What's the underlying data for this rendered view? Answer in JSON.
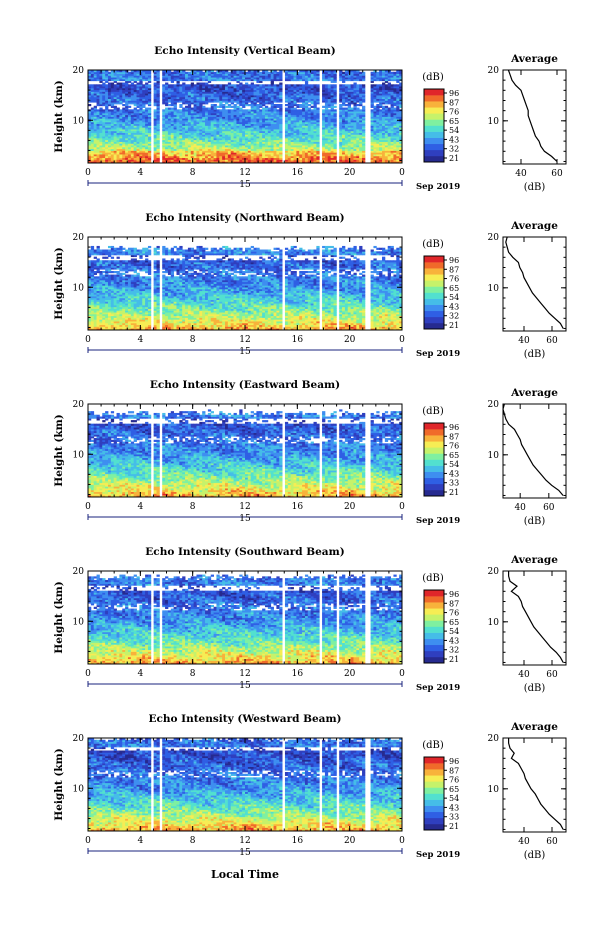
{
  "common": {
    "height_label": "Height (km)",
    "time_ticks": [
      "0",
      "4",
      "8",
      "12",
      "16",
      "20",
      "0"
    ],
    "date_day": "15",
    "date_label": "Sep 2019",
    "cb_unit": "(dB)",
    "avg_title": "Average",
    "avg_xlabel": "(dB)",
    "xlabel_bottom": "Local Time",
    "colors": {
      "scale": [
        "#262a8f",
        "#2f3fbf",
        "#2f5fe4",
        "#3e8ef0",
        "#45bde8",
        "#52e0cf",
        "#7ff0a0",
        "#c6f26a",
        "#f6ed54",
        "#f8b23b",
        "#f06a2a",
        "#e0262a"
      ],
      "axis": "#000000"
    }
  },
  "chart_data": [
    {
      "type": "heatmap",
      "title": "Echo Intensity (Vertical Beam)",
      "ylabel": "Height (km)",
      "ylim": [
        1.5,
        20
      ],
      "yticks": [
        "20",
        "10"
      ],
      "xlim": [
        0,
        24
      ],
      "xticks": [
        "0",
        "4",
        "8",
        "12",
        "16",
        "20",
        "0"
      ],
      "colorbar_ticks": [
        "96",
        "87",
        "76",
        "65",
        "54",
        "43",
        "32",
        "21"
      ],
      "data_gaps_hours": [
        [
          4.8,
          5.0
        ],
        [
          5.4,
          5.6
        ],
        [
          14.8,
          15.1
        ],
        [
          17.7,
          17.9
        ],
        [
          18.9,
          19.1
        ],
        [
          21.2,
          21.5
        ]
      ],
      "profile": {
        "title": "Average",
        "xlabel": "(dB)",
        "xticks": [
          "40",
          "60"
        ],
        "xlim": [
          30,
          65
        ],
        "yticks": [
          "20",
          "10"
        ],
        "height": [
          2,
          3,
          4,
          5,
          6,
          7,
          8,
          9,
          10,
          11,
          12,
          13,
          14,
          15,
          16,
          17,
          18,
          19,
          20
        ],
        "value": [
          60,
          57,
          53,
          51,
          50,
          48,
          47,
          46,
          45,
          44,
          44,
          43,
          42,
          41,
          40,
          37,
          35,
          34,
          33
        ]
      }
    },
    {
      "type": "heatmap",
      "title": "Echo Intensity (Northward Beam)",
      "ylabel": "Height (km)",
      "ylim": [
        1.5,
        20
      ],
      "yticks": [
        "20",
        "10"
      ],
      "xlim": [
        0,
        24
      ],
      "xticks": [
        "0",
        "4",
        "8",
        "12",
        "16",
        "20",
        "0"
      ],
      "colorbar_ticks": [
        "96",
        "87",
        "76",
        "65",
        "54",
        "43",
        "32",
        "21"
      ],
      "data_gaps_hours": [
        [
          4.8,
          5.0
        ],
        [
          5.4,
          5.6
        ],
        [
          14.8,
          15.1
        ],
        [
          17.7,
          17.9
        ],
        [
          18.9,
          19.1
        ],
        [
          21.2,
          21.5
        ]
      ],
      "profile": {
        "title": "Average",
        "xlabel": "(dB)",
        "xticks": [
          "40",
          "60"
        ],
        "xlim": [
          25,
          70
        ],
        "yticks": [
          "20",
          "10"
        ],
        "height": [
          2,
          3,
          4,
          5,
          6,
          7,
          8,
          9,
          10,
          11,
          12,
          13,
          14,
          15,
          16,
          17,
          18,
          19,
          20
        ],
        "value": [
          68,
          66,
          62,
          58,
          55,
          52,
          49,
          46,
          44,
          42,
          40,
          39,
          37,
          36,
          32,
          29,
          28,
          27,
          28
        ]
      }
    },
    {
      "type": "heatmap",
      "title": "Echo Intensity (Eastward Beam)",
      "ylabel": "Height (km)",
      "ylim": [
        1.5,
        20
      ],
      "yticks": [
        "20",
        "10"
      ],
      "xlim": [
        0,
        24
      ],
      "xticks": [
        "0",
        "4",
        "8",
        "12",
        "16",
        "20",
        "0"
      ],
      "colorbar_ticks": [
        "96",
        "87",
        "76",
        "65",
        "54",
        "43",
        "33",
        "21"
      ],
      "data_gaps_hours": [
        [
          4.8,
          5.0
        ],
        [
          5.4,
          5.6
        ],
        [
          14.8,
          15.1
        ],
        [
          17.7,
          17.9
        ],
        [
          18.9,
          19.1
        ],
        [
          21.2,
          21.5
        ]
      ],
      "profile": {
        "title": "Average",
        "xlabel": "(dB)",
        "xticks": [
          "40",
          "60"
        ],
        "xlim": [
          28,
          72
        ],
        "yticks": [
          "20",
          "10"
        ],
        "height": [
          2,
          3,
          4,
          5,
          6,
          7,
          8,
          9,
          10,
          11,
          12,
          13,
          14,
          15,
          16,
          17,
          18,
          19,
          20
        ],
        "value": [
          70,
          67,
          62,
          58,
          55,
          52,
          49,
          47,
          45,
          43,
          41,
          40,
          38,
          36,
          32,
          30,
          29,
          28,
          29
        ]
      }
    },
    {
      "type": "heatmap",
      "title": "Echo Intensity (Southward Beam)",
      "ylabel": "Height (km)",
      "ylim": [
        1.5,
        20
      ],
      "yticks": [
        "20",
        "10"
      ],
      "xlim": [
        0,
        24
      ],
      "xticks": [
        "0",
        "4",
        "8",
        "12",
        "16",
        "20",
        "0"
      ],
      "colorbar_ticks": [
        "96",
        "87",
        "76",
        "65",
        "54",
        "43",
        "32",
        "21"
      ],
      "data_gaps_hours": [
        [
          4.8,
          5.0
        ],
        [
          5.4,
          5.6
        ],
        [
          14.8,
          15.1
        ],
        [
          17.7,
          17.9
        ],
        [
          18.9,
          19.1
        ],
        [
          21.2,
          21.5
        ]
      ],
      "profile": {
        "title": "Average",
        "xlabel": "(dB)",
        "xticks": [
          "40",
          "60"
        ],
        "xlim": [
          25,
          70
        ],
        "yticks": [
          "20",
          "10"
        ],
        "height": [
          2,
          3,
          4,
          5,
          6,
          7,
          8,
          9,
          10,
          11,
          12,
          13,
          14,
          15,
          16,
          17,
          18,
          19,
          20
        ],
        "value": [
          68,
          66,
          63,
          59,
          56,
          53,
          50,
          47,
          45,
          43,
          41,
          39,
          38,
          36,
          31,
          35,
          30,
          29,
          29
        ]
      }
    },
    {
      "type": "heatmap",
      "title": "Echo Intensity (Westward Beam)",
      "ylabel": "Height (km)",
      "ylim": [
        1.5,
        20
      ],
      "yticks": [
        "20",
        "10"
      ],
      "xlim": [
        0,
        24
      ],
      "xticks": [
        "0",
        "4",
        "8",
        "12",
        "16",
        "20",
        "0"
      ],
      "colorbar_ticks": [
        "96",
        "87",
        "76",
        "65",
        "54",
        "43",
        "33",
        "21"
      ],
      "data_gaps_hours": [
        [
          4.8,
          5.0
        ],
        [
          5.4,
          5.6
        ],
        [
          14.8,
          15.1
        ],
        [
          17.7,
          17.9
        ],
        [
          18.9,
          19.1
        ],
        [
          21.2,
          21.5
        ]
      ],
      "profile": {
        "title": "Average",
        "xlabel": "(dB)",
        "xticks": [
          "40",
          "60"
        ],
        "xlim": [
          25,
          70
        ],
        "yticks": [
          "20",
          "10"
        ],
        "height": [
          2,
          3,
          4,
          5,
          6,
          7,
          8,
          9,
          10,
          11,
          12,
          13,
          14,
          15,
          16,
          17,
          18,
          19,
          20
        ],
        "value": [
          68,
          66,
          62,
          58,
          55,
          52,
          50,
          48,
          45,
          43,
          41,
          40,
          38,
          36,
          31,
          33,
          30,
          29,
          29
        ]
      }
    }
  ]
}
